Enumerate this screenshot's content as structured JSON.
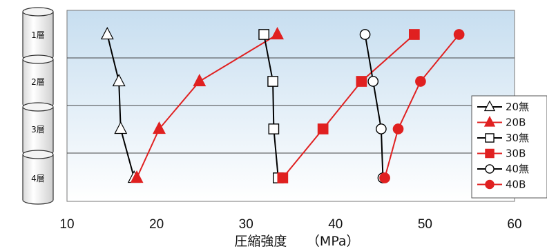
{
  "chart_data": {
    "type": "line",
    "orientation": "horizontal-values",
    "xlabel": "圧縮強度　　（MPa）",
    "xlim": [
      10,
      60
    ],
    "x_ticks": [
      10,
      20,
      30,
      40,
      50,
      60
    ],
    "categories": [
      "1層",
      "2層",
      "3層",
      "4層"
    ],
    "grid": "horizontal-only",
    "legend_position": "right",
    "series": [
      {
        "name": "20無",
        "color": "#000000",
        "marker": "open-triangle",
        "values": [
          14.5,
          15.8,
          16.0,
          17.5
        ]
      },
      {
        "name": "20B",
        "color": "#e02020",
        "marker": "filled-triangle",
        "values": [
          33.5,
          24.8,
          20.3,
          17.8
        ]
      },
      {
        "name": "30無",
        "color": "#000000",
        "marker": "open-square",
        "values": [
          32.0,
          33.0,
          33.1,
          33.6
        ]
      },
      {
        "name": "30B",
        "color": "#e02020",
        "marker": "filled-square",
        "values": [
          48.8,
          42.9,
          38.6,
          34.1
        ]
      },
      {
        "name": "40無",
        "color": "#000000",
        "marker": "open-circle",
        "values": [
          43.3,
          44.2,
          45.1,
          45.3
        ]
      },
      {
        "name": "40B",
        "color": "#e02020",
        "marker": "filled-circle",
        "values": [
          53.8,
          49.5,
          47.0,
          45.5
        ]
      }
    ]
  }
}
